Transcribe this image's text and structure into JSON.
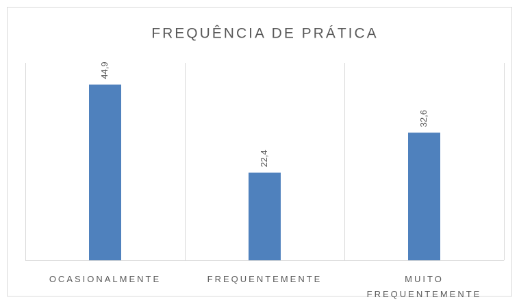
{
  "chart_data": {
    "type": "bar",
    "title": "FREQUÊNCIA DE PRÁTICA",
    "categories": [
      "OCASIONALMENTE",
      "FREQUENTEMENTE",
      "MUITO FREQUENTEMENTE"
    ],
    "values": [
      44.9,
      22.4,
      32.6
    ],
    "value_labels": [
      "44,9",
      "22,4",
      "32,6"
    ],
    "color": "#4f81bd"
  }
}
